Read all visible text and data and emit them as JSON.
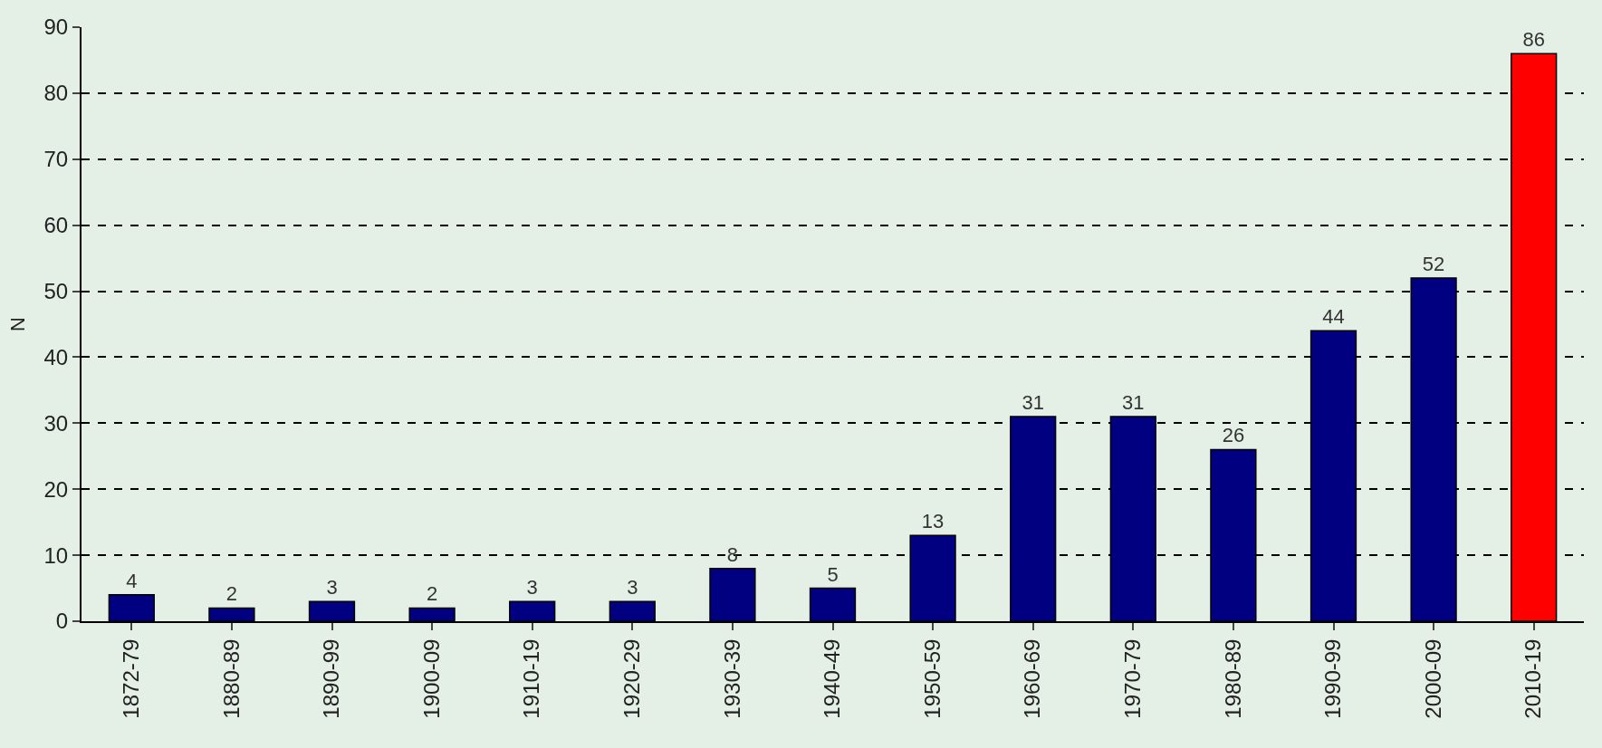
{
  "chart_data": {
    "type": "bar",
    "ylabel": "N",
    "categories": [
      "1872-79",
      "1880-89",
      "1890-99",
      "1900-09",
      "1910-19",
      "1920-29",
      "1930-39",
      "1940-49",
      "1950-59",
      "1960-69",
      "1970-79",
      "1980-89",
      "1990-99",
      "2000-09",
      "2010-19"
    ],
    "values": [
      4,
      2,
      3,
      2,
      3,
      3,
      8,
      5,
      13,
      31,
      31,
      26,
      44,
      52,
      86
    ],
    "colors": [
      "#000080",
      "#000080",
      "#000080",
      "#000080",
      "#000080",
      "#000080",
      "#000080",
      "#000080",
      "#000080",
      "#000080",
      "#000080",
      "#000080",
      "#000080",
      "#000080",
      "#ff0000"
    ],
    "ylim": [
      0,
      90
    ],
    "yticks": [
      0,
      10,
      20,
      30,
      40,
      50,
      60,
      70,
      80,
      90
    ],
    "grid": "y",
    "data_labels": true
  }
}
